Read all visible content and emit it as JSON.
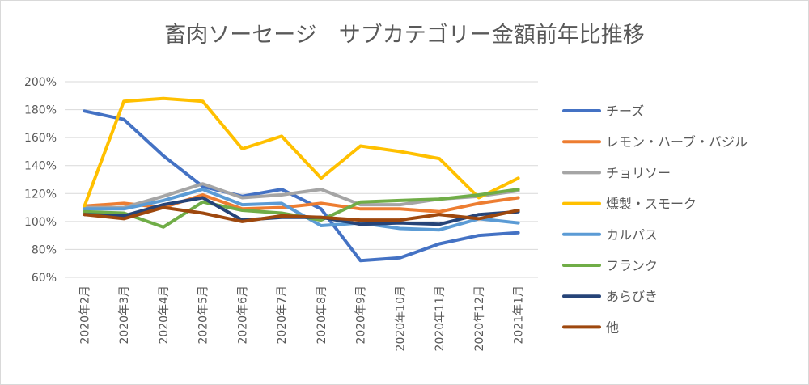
{
  "chart_data": {
    "type": "line",
    "title": "畜肉ソーセージ　サブカテゴリー金額前年比推移",
    "xlabel": "",
    "ylabel": "",
    "categories": [
      "2020年2月",
      "2020年3月",
      "2020年4月",
      "2020年5月",
      "2020年6月",
      "2020年7月",
      "2020年8月",
      "2020年9月",
      "2020年10月",
      "2020年11月",
      "2020年12月",
      "2021年1月"
    ],
    "ylim": [
      60,
      200
    ],
    "yticks": [
      60,
      80,
      100,
      120,
      140,
      160,
      180,
      200
    ],
    "ytick_labels": [
      "60%",
      "80%",
      "100%",
      "120%",
      "140%",
      "160%",
      "180%",
      "200%"
    ],
    "grid": true,
    "legend_position": "right",
    "series": [
      {
        "name": "チーズ",
        "color": "#4472c4",
        "values": [
          179,
          173,
          147,
          125,
          118,
          123,
          109,
          72,
          74,
          84,
          90,
          92
        ]
      },
      {
        "name": "レモン・ハーブ・バジル",
        "color": "#ed7d31",
        "values": [
          111,
          113,
          110,
          119,
          109,
          110,
          113,
          109,
          109,
          107,
          113,
          117
        ]
      },
      {
        "name": "チョリソー",
        "color": "#a5a5a5",
        "values": [
          110,
          110,
          118,
          127,
          117,
          119,
          123,
          112,
          112,
          116,
          118,
          122
        ]
      },
      {
        "name": "燻製・スモーク",
        "color": "#ffc000",
        "values": [
          111,
          186,
          188,
          186,
          152,
          161,
          131,
          154,
          150,
          145,
          117,
          131
        ]
      },
      {
        "name": "カルパス",
        "color": "#5b9bd5",
        "values": [
          109,
          109,
          115,
          123,
          112,
          113,
          97,
          99,
          95,
          94,
          102,
          99
        ]
      },
      {
        "name": "フランク",
        "color": "#70ad47",
        "values": [
          107,
          106,
          96,
          114,
          108,
          106,
          101,
          114,
          115,
          116,
          119,
          123
        ]
      },
      {
        "name": "あらびき",
        "color": "#264478",
        "values": [
          105,
          104,
          112,
          117,
          101,
          103,
          103,
          98,
          99,
          98,
          105,
          107
        ]
      },
      {
        "name": "他",
        "color": "#9e480e",
        "values": [
          105,
          102,
          110,
          106,
          100,
          104,
          103,
          101,
          101,
          105,
          102,
          108
        ]
      }
    ]
  }
}
